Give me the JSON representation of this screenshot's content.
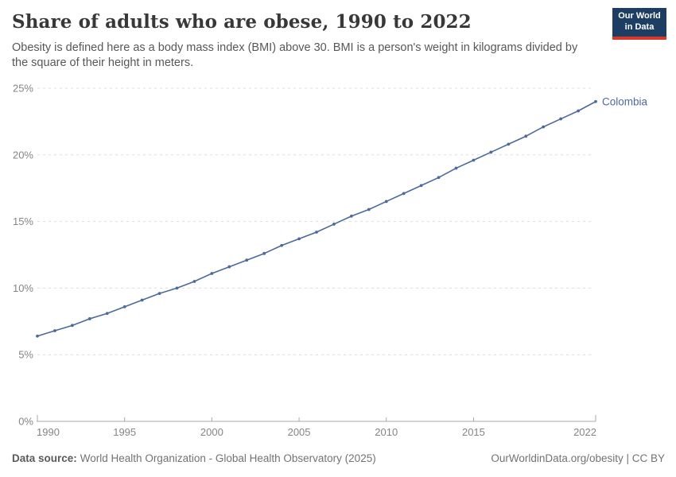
{
  "header": {
    "title": "Share of adults who are obese, 1990 to 2022",
    "subtitle": "Obesity is defined here as a body mass index (BMI) above 30. BMI is a person's weight in kilograms divided by the square of their height in meters."
  },
  "logo": {
    "line1": "Our World",
    "line2": "in Data",
    "background": "#1d3d63",
    "bar": "#d8372c"
  },
  "chart_data": {
    "type": "line",
    "title": "Share of adults who are obese, 1990 to 2022",
    "xlabel": "",
    "ylabel": "",
    "ylim": [
      0,
      25
    ],
    "yticks": [
      0,
      5,
      10,
      15,
      20,
      25
    ],
    "ytick_suffix": "%",
    "xticks": [
      1990,
      1995,
      2000,
      2005,
      2010,
      2015,
      2022
    ],
    "grid": "horizontal-dashed",
    "legend_position": "end-of-line-label",
    "series": [
      {
        "name": "Colombia",
        "color": "#4c6a9c",
        "x": [
          1990,
          1991,
          1992,
          1993,
          1994,
          1995,
          1996,
          1997,
          1998,
          1999,
          2000,
          2001,
          2002,
          2003,
          2004,
          2005,
          2006,
          2007,
          2008,
          2009,
          2010,
          2011,
          2012,
          2013,
          2014,
          2015,
          2016,
          2017,
          2018,
          2019,
          2020,
          2021,
          2022
        ],
        "values": [
          6.4,
          6.8,
          7.2,
          7.7,
          8.1,
          8.6,
          9.1,
          9.6,
          10.0,
          10.5,
          11.1,
          11.6,
          12.1,
          12.6,
          13.2,
          13.7,
          14.2,
          14.8,
          15.4,
          15.9,
          16.5,
          17.1,
          17.7,
          18.3,
          19.0,
          19.6,
          20.2,
          20.8,
          21.4,
          22.1,
          22.7,
          23.3,
          24.0
        ]
      }
    ],
    "colors": {
      "grid": "#dddddd",
      "axis": "#a8a8a8",
      "tick_label": "#858585"
    }
  },
  "footer": {
    "datasource_label": "Data source:",
    "datasource_value": "World Health Organization - Global Health Observatory (2025)",
    "link": "OurWorldinData.org/obesity | CC BY"
  }
}
